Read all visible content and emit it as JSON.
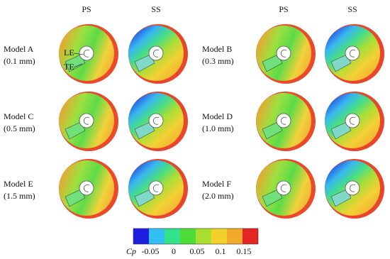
{
  "column_headers": [
    "PS",
    "SS",
    "PS",
    "SS"
  ],
  "models": [
    {
      "name": "Model A",
      "size": "(0.1 mm)"
    },
    {
      "name": "Model B",
      "size": "(0.3 mm)"
    },
    {
      "name": "Model C",
      "size": "(0.5 mm)"
    },
    {
      "name": "Model D",
      "size": "(1.0 mm)"
    },
    {
      "name": "Model E",
      "size": "(1.5 mm)"
    },
    {
      "name": "Model F",
      "size": "(2.0 mm)"
    }
  ],
  "annotations": {
    "le": "LE",
    "te": "TE"
  },
  "colorbar": {
    "label": "Cp",
    "ticks": [
      "-0.05",
      "0",
      "0.05",
      "0.1",
      "0.15"
    ]
  }
}
